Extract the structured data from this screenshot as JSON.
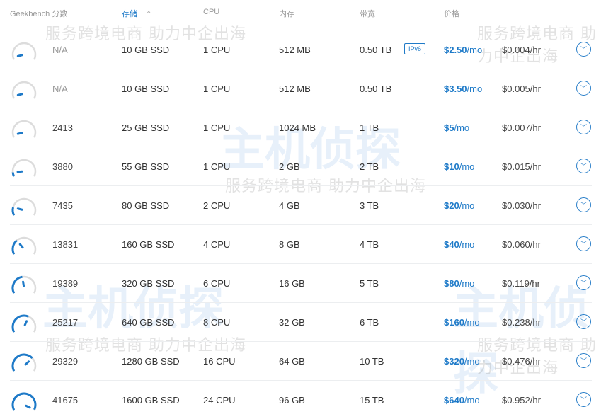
{
  "watermark": {
    "slogan": "服务跨境电商 助力中企出海",
    "logo": "主机侦探"
  },
  "header": {
    "score": "Geekbench 分数",
    "storage": "存储",
    "sort_icon": "sort-icon",
    "cpu": "CPU",
    "memory": "内存",
    "bandwidth": "带宽",
    "price": "价格"
  },
  "colors": {
    "accent": "#1e7ac8",
    "gauge_track": "#dcdcdc"
  },
  "gauge_max": 42000,
  "rows": [
    {
      "score": "N/A",
      "storage": "10 GB SSD",
      "cpu": "1 CPU",
      "memory": "512 MB",
      "bandwidth": "0.50 TB",
      "badge": "IPv6",
      "price": "$2.50",
      "per": "/mo",
      "hourly": "$0.004/hr"
    },
    {
      "score": "N/A",
      "storage": "10 GB SSD",
      "cpu": "1 CPU",
      "memory": "512 MB",
      "bandwidth": "0.50 TB",
      "price": "$3.50",
      "per": "/mo",
      "hourly": "$0.005/hr"
    },
    {
      "score": "2413",
      "storage": "25 GB SSD",
      "cpu": "1 CPU",
      "memory": "1024 MB",
      "bandwidth": "1 TB",
      "price": "$5",
      "per": "/mo",
      "hourly": "$0.007/hr"
    },
    {
      "score": "3880",
      "storage": "55 GB SSD",
      "cpu": "1 CPU",
      "memory": "2 GB",
      "bandwidth": "2 TB",
      "price": "$10",
      "per": "/mo",
      "hourly": "$0.015/hr"
    },
    {
      "score": "7435",
      "storage": "80 GB SSD",
      "cpu": "2 CPU",
      "memory": "4 GB",
      "bandwidth": "3 TB",
      "price": "$20",
      "per": "/mo",
      "hourly": "$0.030/hr"
    },
    {
      "score": "13831",
      "storage": "160 GB SSD",
      "cpu": "4 CPU",
      "memory": "8 GB",
      "bandwidth": "4 TB",
      "price": "$40",
      "per": "/mo",
      "hourly": "$0.060/hr"
    },
    {
      "score": "19389",
      "storage": "320 GB SSD",
      "cpu": "6 CPU",
      "memory": "16 GB",
      "bandwidth": "5 TB",
      "price": "$80",
      "per": "/mo",
      "hourly": "$0.119/hr"
    },
    {
      "score": "25217",
      "storage": "640 GB SSD",
      "cpu": "8 CPU",
      "memory": "32 GB",
      "bandwidth": "6 TB",
      "price": "$160",
      "per": "/mo",
      "hourly": "$0.238/hr"
    },
    {
      "score": "29329",
      "storage": "1280 GB SSD",
      "cpu": "16 CPU",
      "memory": "64 GB",
      "bandwidth": "10 TB",
      "price": "$320",
      "per": "/mo",
      "hourly": "$0.476/hr"
    },
    {
      "score": "41675",
      "storage": "1600 GB SSD",
      "cpu": "24 CPU",
      "memory": "96 GB",
      "bandwidth": "15 TB",
      "price": "$640",
      "per": "/mo",
      "hourly": "$0.952/hr"
    }
  ]
}
